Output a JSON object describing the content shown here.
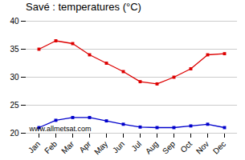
{
  "chart_data": {
    "type": "line",
    "title": "Savé : temperatures (°C)",
    "categories": [
      "Jan",
      "Feb",
      "Mar",
      "Apr",
      "May",
      "Jun",
      "Jul",
      "Aug",
      "Sep",
      "Oct",
      "Nov",
      "Dec"
    ],
    "series": [
      {
        "color": "#dd0000",
        "marker": "square",
        "values": [
          35.0,
          36.5,
          36.0,
          34.0,
          32.5,
          31.0,
          29.2,
          28.8,
          30.0,
          31.5,
          34.0,
          34.2
        ]
      },
      {
        "color": "#0000cc",
        "marker": "square",
        "values": [
          21.0,
          22.3,
          22.8,
          22.8,
          22.2,
          21.6,
          21.1,
          21.0,
          21.0,
          21.3,
          21.6,
          21.0
        ]
      }
    ],
    "ylim": [
      20,
      40
    ],
    "yticks": [
      20,
      25,
      30,
      35,
      40
    ],
    "grid": true,
    "annotation": "www.allmetsat.com"
  }
}
